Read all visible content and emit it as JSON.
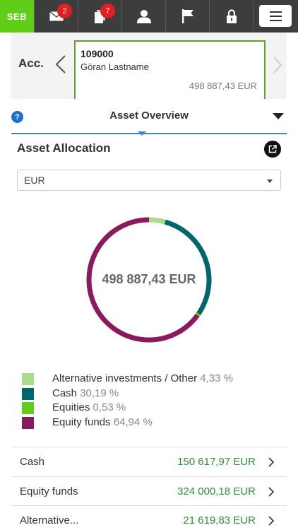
{
  "topbar": {
    "logo_text": "SEB",
    "mail_badge": "2",
    "docs_badge": "7",
    "icons": [
      "mail-icon",
      "documents-icon",
      "user-icon",
      "flag-icon",
      "lock-icon",
      "hamburger-menu-icon"
    ]
  },
  "account": {
    "label": "Acc.",
    "number": "109000",
    "holder": "Göran Lastname",
    "balance": "498 887,43 EUR"
  },
  "overview": {
    "help_glyph": "?",
    "title": "Asset Overview"
  },
  "allocation": {
    "title": "Asset Allocation",
    "currency": "EUR",
    "total": "498 887,43 EUR"
  },
  "colors": {
    "alt_investments": "#a8dd8c",
    "cash": "#00656e",
    "equities": "#60cd18",
    "equity_funds": "#8a1a5e",
    "amount_green": "#2f8f3a",
    "brand_green": "#60cd18"
  },
  "chart_data": {
    "type": "pie",
    "categories": [
      "Alternative investments / Other",
      "Cash",
      "Equities",
      "Equity funds"
    ],
    "values": [
      4.33,
      30.19,
      0.53,
      64.94
    ],
    "colors": [
      "#a8dd8c",
      "#00656e",
      "#60cd18",
      "#8a1a5e"
    ]
  },
  "legend": [
    {
      "name": "Alternative investments / Other",
      "pct": "4,33 %"
    },
    {
      "name": "Cash",
      "pct": "30,19 %"
    },
    {
      "name": "Equities",
      "pct": "0,53 %"
    },
    {
      "name": "Equity funds",
      "pct": "64,94 %"
    }
  ],
  "rows": [
    {
      "name": "Cash",
      "amount": "150 617,97 EUR"
    },
    {
      "name": "Equity funds",
      "amount": "324 000,18 EUR"
    },
    {
      "name": "Alternative...",
      "amount": "21 619,83 EUR"
    }
  ]
}
